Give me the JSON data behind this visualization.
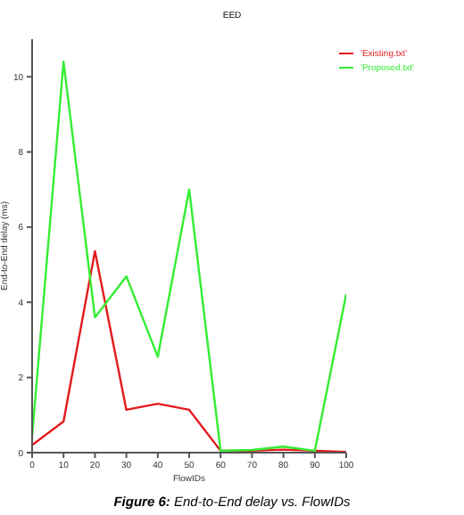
{
  "chart_data": {
    "type": "line",
    "title": "EED",
    "xlabel": "FlowIDs",
    "ylabel": "End-to-End delay (ms)",
    "x": [
      0,
      10,
      20,
      30,
      40,
      50,
      60,
      70,
      80,
      90,
      100
    ],
    "series": [
      {
        "name": "'Existing.txt'",
        "color": "#e41a1c",
        "values": [
          0.2,
          0.83,
          5.36,
          1.14,
          1.3,
          1.14,
          0.05,
          0.05,
          0.08,
          0.05,
          0.02
        ]
      },
      {
        "name": "'Proposed.txt'",
        "color": "#33ee33",
        "values": [
          0.44,
          10.4,
          3.6,
          4.69,
          2.55,
          7.0,
          0.05,
          0.07,
          0.16,
          0.05,
          4.22
        ]
      }
    ],
    "xlim": [
      0,
      100
    ],
    "xticks": [
      0,
      10,
      20,
      30,
      40,
      50,
      60,
      70,
      80,
      90,
      100
    ],
    "ylim": [
      0,
      11
    ],
    "yticks": [
      0,
      2,
      4,
      6,
      8,
      10
    ],
    "grid": false,
    "legend": "top right",
    "marker": "none",
    "line_style": "solid",
    "annotations": [
      "Figure 6: End-to-End delay vs. FlowIDs"
    ]
  }
}
